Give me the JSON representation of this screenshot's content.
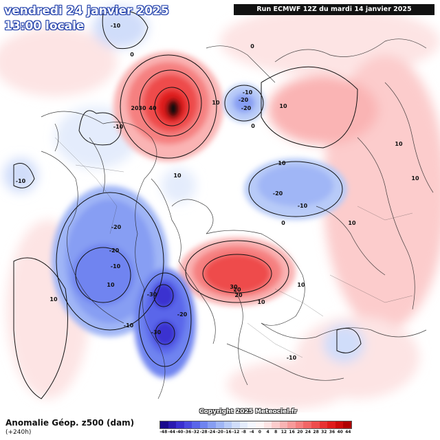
{
  "header": {
    "date": "vendredi 24 janvier 2025",
    "time": "13:00 locale",
    "run": "Run ECMWF 12Z du mardi 14 janvier 2025"
  },
  "footer": {
    "title": "Anomalie Géop. z500 (dam)",
    "subtitle": "(+240h)",
    "copyright": "Copyright 2025 Meteociel.fr"
  },
  "legend": {
    "ticks": [
      "-48",
      "-44",
      "-40",
      "-36",
      "-32",
      "-28",
      "-24",
      "-20",
      "-16",
      "-12",
      "-8",
      "-4",
      "0",
      "4",
      "8",
      "12",
      "16",
      "20",
      "24",
      "28",
      "32",
      "36",
      "40",
      "44"
    ],
    "colors": [
      "#1a0a8c",
      "#2a1ab0",
      "#3a30d0",
      "#4a4ae0",
      "#5a66ea",
      "#6f84f0",
      "#879ef3",
      "#a0b6f6",
      "#b8cbf8",
      "#d0ddfa",
      "#e4ecfc",
      "#f4f7fe",
      "#fef6f6",
      "#fde4e4",
      "#fccccc",
      "#fab4b4",
      "#f89a9a",
      "#f58080",
      "#f26666",
      "#ee4c4c",
      "#e83232",
      "#e01c1c",
      "#cc0c0c",
      "#b00000"
    ]
  },
  "contour_labels": [
    "-10",
    "0",
    "10",
    "20",
    "30",
    "40",
    "10",
    "-10",
    "-20",
    "0",
    "10",
    "-10",
    "10",
    "-10",
    "-20",
    "-10",
    "0",
    "10",
    "10",
    "-20",
    "-20",
    "-20",
    "-10",
    "-30",
    "-20",
    "-30",
    "-10",
    "10",
    "20",
    "30",
    "20",
    "10",
    "-10",
    "10",
    "10",
    "0",
    "10"
  ]
}
